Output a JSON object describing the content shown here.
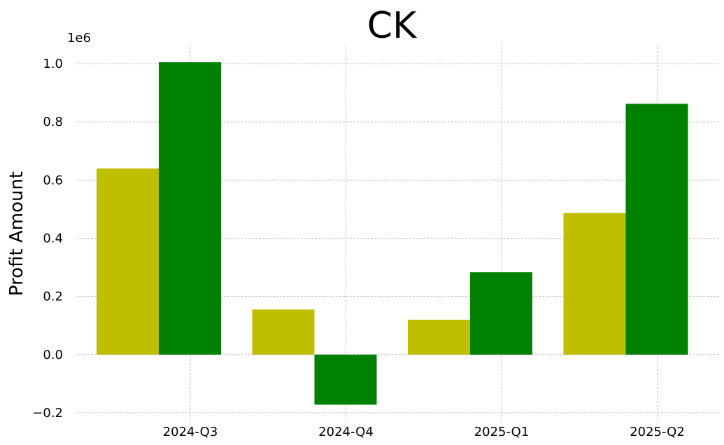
{
  "chart_data": {
    "type": "bar",
    "title": "CK",
    "xlabel": "",
    "ylabel": "Profit Amount",
    "y_multiplier_label": "1e6",
    "y_tick_labels": [
      "−0.2",
      "0.0",
      "0.2",
      "0.4",
      "0.6",
      "0.8",
      "1.0"
    ],
    "y_tick_values": [
      -0.2,
      0.0,
      0.2,
      0.4,
      0.6,
      0.8,
      1.0
    ],
    "ylim": [
      -0.2,
      1.0
    ],
    "units_note": "values in millions (axis multiplier 1e6)",
    "categories": [
      "2024-Q3",
      "2024-Q4",
      "2025-Q1",
      "2025-Q2"
    ],
    "series": [
      {
        "color": "#bfbf00",
        "values": [
          0.64,
          0.155,
          0.12,
          0.487
        ]
      },
      {
        "color": "#008000",
        "values": [
          1.005,
          -0.172,
          0.283,
          0.862
        ]
      }
    ],
    "grid": true,
    "legend": "none"
  }
}
